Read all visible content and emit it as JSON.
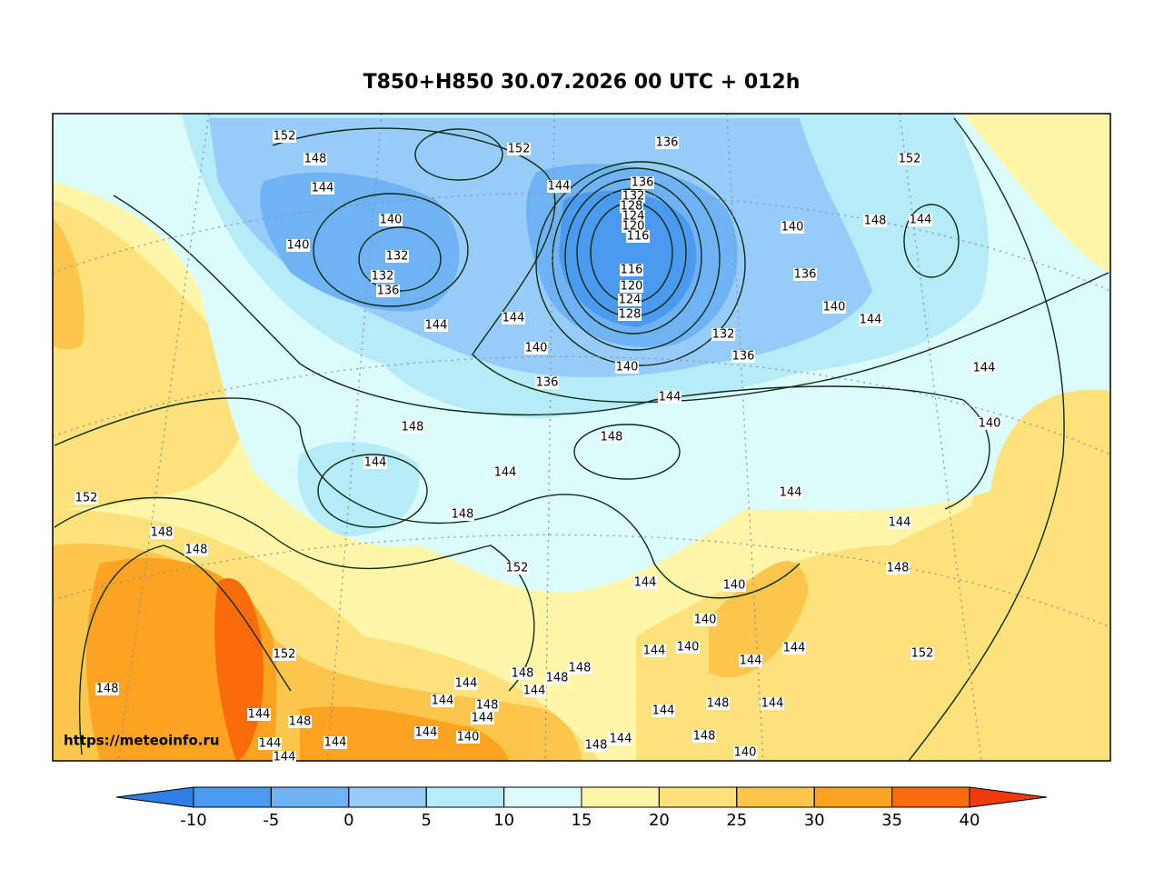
{
  "title": "T850+H850 30.07.2026 00 UTC + 012h",
  "watermark": "https://meteoinfo.ru",
  "colorbar": {
    "ticks": [
      -10,
      -5,
      0,
      5,
      10,
      15,
      20,
      25,
      30,
      35,
      40
    ],
    "colors": [
      "#2f7fe6",
      "#4a9bf0",
      "#6fb3f5",
      "#97ccf8",
      "#b6ecf7",
      "#dcfbfb",
      "#fff6a8",
      "#fde27c",
      "#fcc64c",
      "#fca321",
      "#fa6b0c",
      "#ee3a0c"
    ]
  },
  "contour_labels": [
    152,
    148,
    144,
    140,
    140,
    132,
    132,
    136,
    144,
    144,
    152,
    144,
    136,
    136,
    132,
    128,
    124,
    120,
    116,
    116,
    120,
    124,
    128,
    140,
    136,
    140,
    144,
    132,
    136,
    140,
    136,
    140,
    144,
    148,
    144,
    152,
    144,
    140,
    148,
    144,
    148,
    144,
    144,
    148,
    152,
    148,
    148,
    152,
    144,
    140,
    144,
    148,
    140,
    144,
    140,
    144,
    152,
    152,
    148,
    144,
    148,
    148,
    148,
    144,
    148,
    144,
    144,
    148,
    144,
    144,
    148,
    144,
    144,
    144,
    144,
    140,
    148,
    144,
    148,
    140,
    144,
    144
  ]
}
